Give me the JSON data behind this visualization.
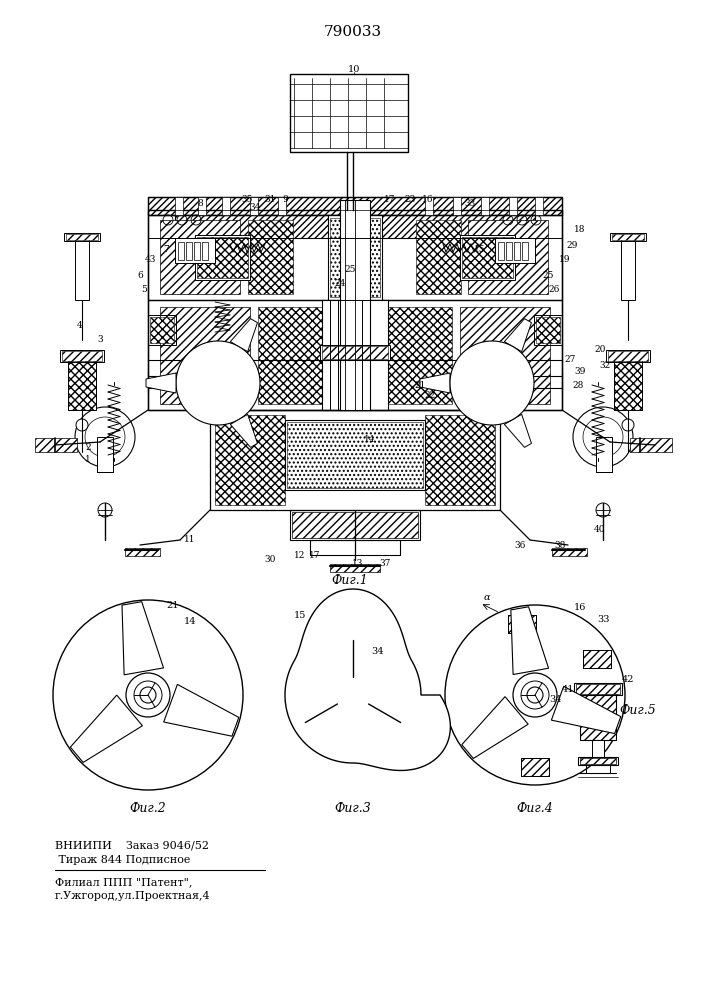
{
  "title": "790033",
  "fig1_label": "Фиг.1",
  "fig2_label": "Фиг.2",
  "fig3_label": "Фиг.3",
  "fig4_label": "Фиг.4",
  "fig5_label": "Фиг.5",
  "footer_line1": "ВНИИПИ    Заказ 9046/52",
  "footer_line2": " Тираж 844 Подписное",
  "footer_line3": "Филиал ППП \"Патент\",",
  "footer_line4": "г.Ужгород,ул.Проектная,4",
  "bg_color": "#ffffff",
  "line_color": "#000000"
}
